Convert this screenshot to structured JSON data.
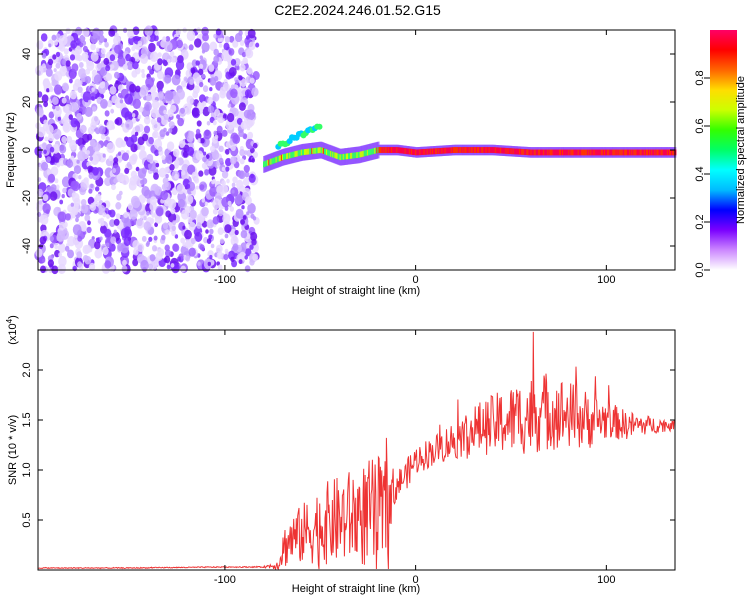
{
  "figure_title": "C2E2.2024.246.01.52.G15",
  "colors": {
    "snr_line": "#ee3333",
    "background": "#ffffff"
  },
  "chart_data": [
    {
      "type": "heatmap",
      "title": "C2E2.2024.246.01.52.G15",
      "xlabel": "Height of straight line (km)",
      "ylabel": "Frequency (Hz)",
      "xlim": [
        -198,
        136
      ],
      "ylim": [
        -50,
        50
      ],
      "xticks": [
        -100,
        0,
        100
      ],
      "yticks": [
        -40,
        -20,
        0,
        20,
        40
      ],
      "grid": false,
      "noise_region_x": [
        -198,
        -83
      ],
      "signal_track": {
        "x": [
          -80,
          -70,
          -60,
          -50,
          -40,
          -30,
          -20,
          -10,
          0,
          20,
          40,
          60,
          80,
          100,
          120,
          136
        ],
        "y": [
          -6,
          -3,
          -1,
          0,
          -3,
          -2,
          0,
          0,
          -1,
          0,
          0,
          -1,
          -1,
          -1,
          -1,
          -1
        ]
      },
      "colorbar": {
        "label": "Normalized spectral amplitude",
        "range": [
          0,
          1
        ],
        "ticks": [
          "0.0",
          "0.2",
          "0.4",
          "0.6",
          "0.8"
        ],
        "colors": [
          "#ffffff",
          "#cc88ff",
          "#7a00ff",
          "#0000ff",
          "#00bbff",
          "#00ffff",
          "#00ff66",
          "#33ff00",
          "#ccff00",
          "#ffdd00",
          "#ff6600",
          "#ff0000",
          "#ff0066"
        ]
      }
    },
    {
      "type": "line",
      "xlabel": "Height of straight line (km)",
      "ylabel": "SNR (10 * v/v)",
      "y_scale_note": "(x10^4)",
      "xlim": [
        -198,
        136
      ],
      "ylim": [
        0,
        2.4
      ],
      "xticks": [
        -100,
        0,
        100
      ],
      "yticks": [
        "0.5",
        "1.0",
        "1.5",
        "2.0"
      ],
      "series": [
        {
          "x": [
            -198,
            -150,
            -100,
            -80,
            -72,
            -70,
            -66,
            -60,
            -50,
            -40,
            -30,
            -20,
            -15,
            -10,
            -5,
            0,
            10,
            20,
            30,
            40,
            50,
            60,
            70,
            80,
            90,
            100,
            110,
            120,
            136
          ],
          "y": [
            0.02,
            0.02,
            0.03,
            0.03,
            0.05,
            0.2,
            0.3,
            0.35,
            0.45,
            0.5,
            0.55,
            0.55,
            0.6,
            0.85,
            0.95,
            1.1,
            1.2,
            1.3,
            1.4,
            1.45,
            1.5,
            1.55,
            1.6,
            1.55,
            1.5,
            1.5,
            1.45,
            1.45,
            1.45
          ],
          "amplitude": [
            0.005,
            0.005,
            0.005,
            0.005,
            0.05,
            0.2,
            0.25,
            0.3,
            0.4,
            0.45,
            0.5,
            0.6,
            0.5,
            0.15,
            0.15,
            0.15,
            0.15,
            0.2,
            0.25,
            0.3,
            0.35,
            0.4,
            0.4,
            0.35,
            0.3,
            0.2,
            0.15,
            0.1,
            0.05
          ]
        }
      ]
    }
  ],
  "axis_text": {
    "top_xlabel": "Height of straight line (km)",
    "top_ylabel": "Frequency (Hz)",
    "bottom_xlabel": "Height of straight line (km)",
    "bottom_ylabel": "SNR (10 * v/v)",
    "bottom_scale_prefix": "(x10",
    "bottom_scale_exp": "4",
    "bottom_scale_suffix": ")",
    "colorbar_label": "Normalized spectral amplitude"
  }
}
